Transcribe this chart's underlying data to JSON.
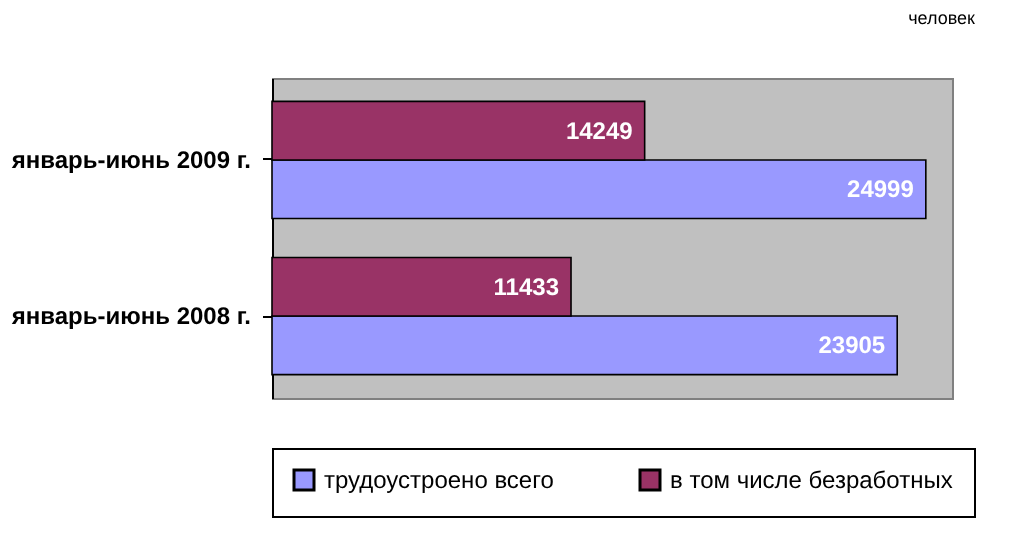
{
  "chart_data": {
    "type": "bar",
    "orientation": "horizontal",
    "categories": [
      "январь-июнь 2009 г.",
      "январь-июнь 2008 г."
    ],
    "series": [
      {
        "name": "трудоустроено всего",
        "color": "#9999ff",
        "values": [
          24999,
          23905
        ]
      },
      {
        "name": "в том числе безработных",
        "color": "#993366",
        "values": [
          14249,
          11433
        ]
      }
    ],
    "xlim": [
      0,
      26000
    ],
    "data_labels": true,
    "legend": "bottom",
    "annotations": [
      "человек"
    ]
  }
}
